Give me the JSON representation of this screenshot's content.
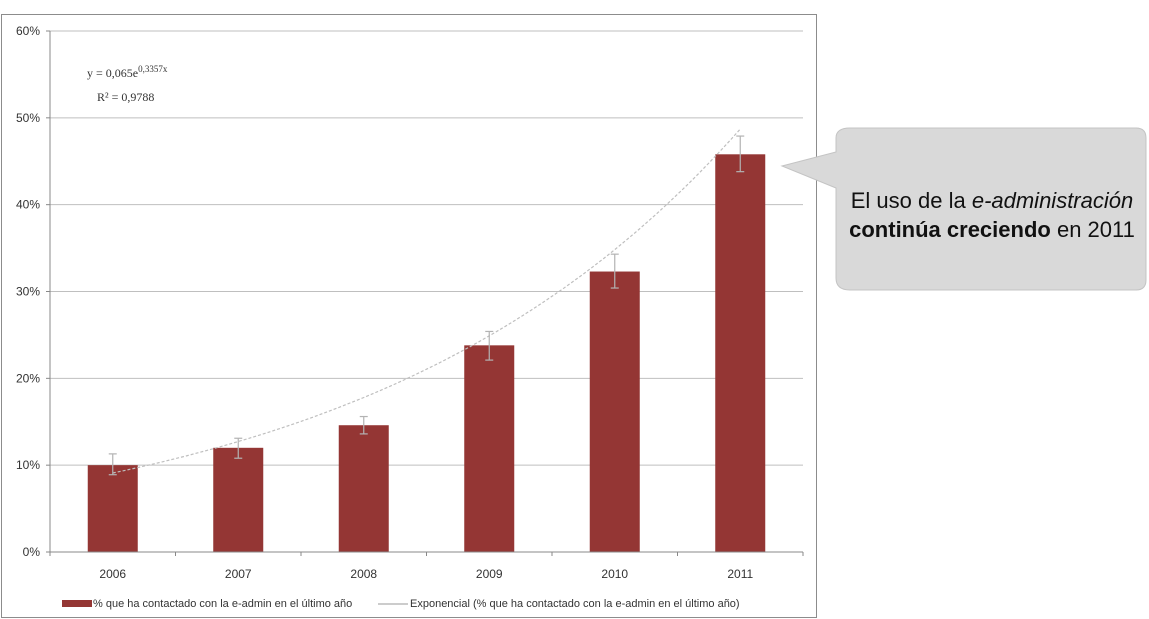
{
  "chart_data": {
    "type": "bar",
    "categories": [
      "2006",
      "2007",
      "2008",
      "2009",
      "2010",
      "2011"
    ],
    "series": [
      {
        "name": "% que ha contactado con la e-admin en el último año",
        "values": [
          10.0,
          12.0,
          14.6,
          23.8,
          32.3,
          45.8
        ],
        "error_low": [
          8.9,
          10.8,
          13.6,
          22.1,
          30.4,
          43.8
        ],
        "error_high": [
          11.3,
          13.1,
          15.6,
          25.4,
          34.3,
          47.9
        ],
        "color": "#943634"
      }
    ],
    "trendline": {
      "name": "Exponencial (% que ha contactado con la e-admin en el último año)",
      "type": "exponential",
      "equation": "y = 0,065e",
      "equation_exponent": "0,3357x",
      "r2_label": "R² = 0,9788",
      "a": 0.065,
      "b": 0.3357,
      "color": "#bfbfbf"
    },
    "y_ticks": [
      "0%",
      "10%",
      "20%",
      "30%",
      "40%",
      "50%",
      "60%"
    ],
    "ylim": [
      0,
      60
    ],
    "grid": true,
    "legend_position": "bottom"
  },
  "callout": {
    "line1_plain": "El uso de la ",
    "line1_italic": "e-administración",
    "line2_bold": "continúa creciendo",
    "line2_plain": " en 2011",
    "fill": "#d9d9d9"
  }
}
